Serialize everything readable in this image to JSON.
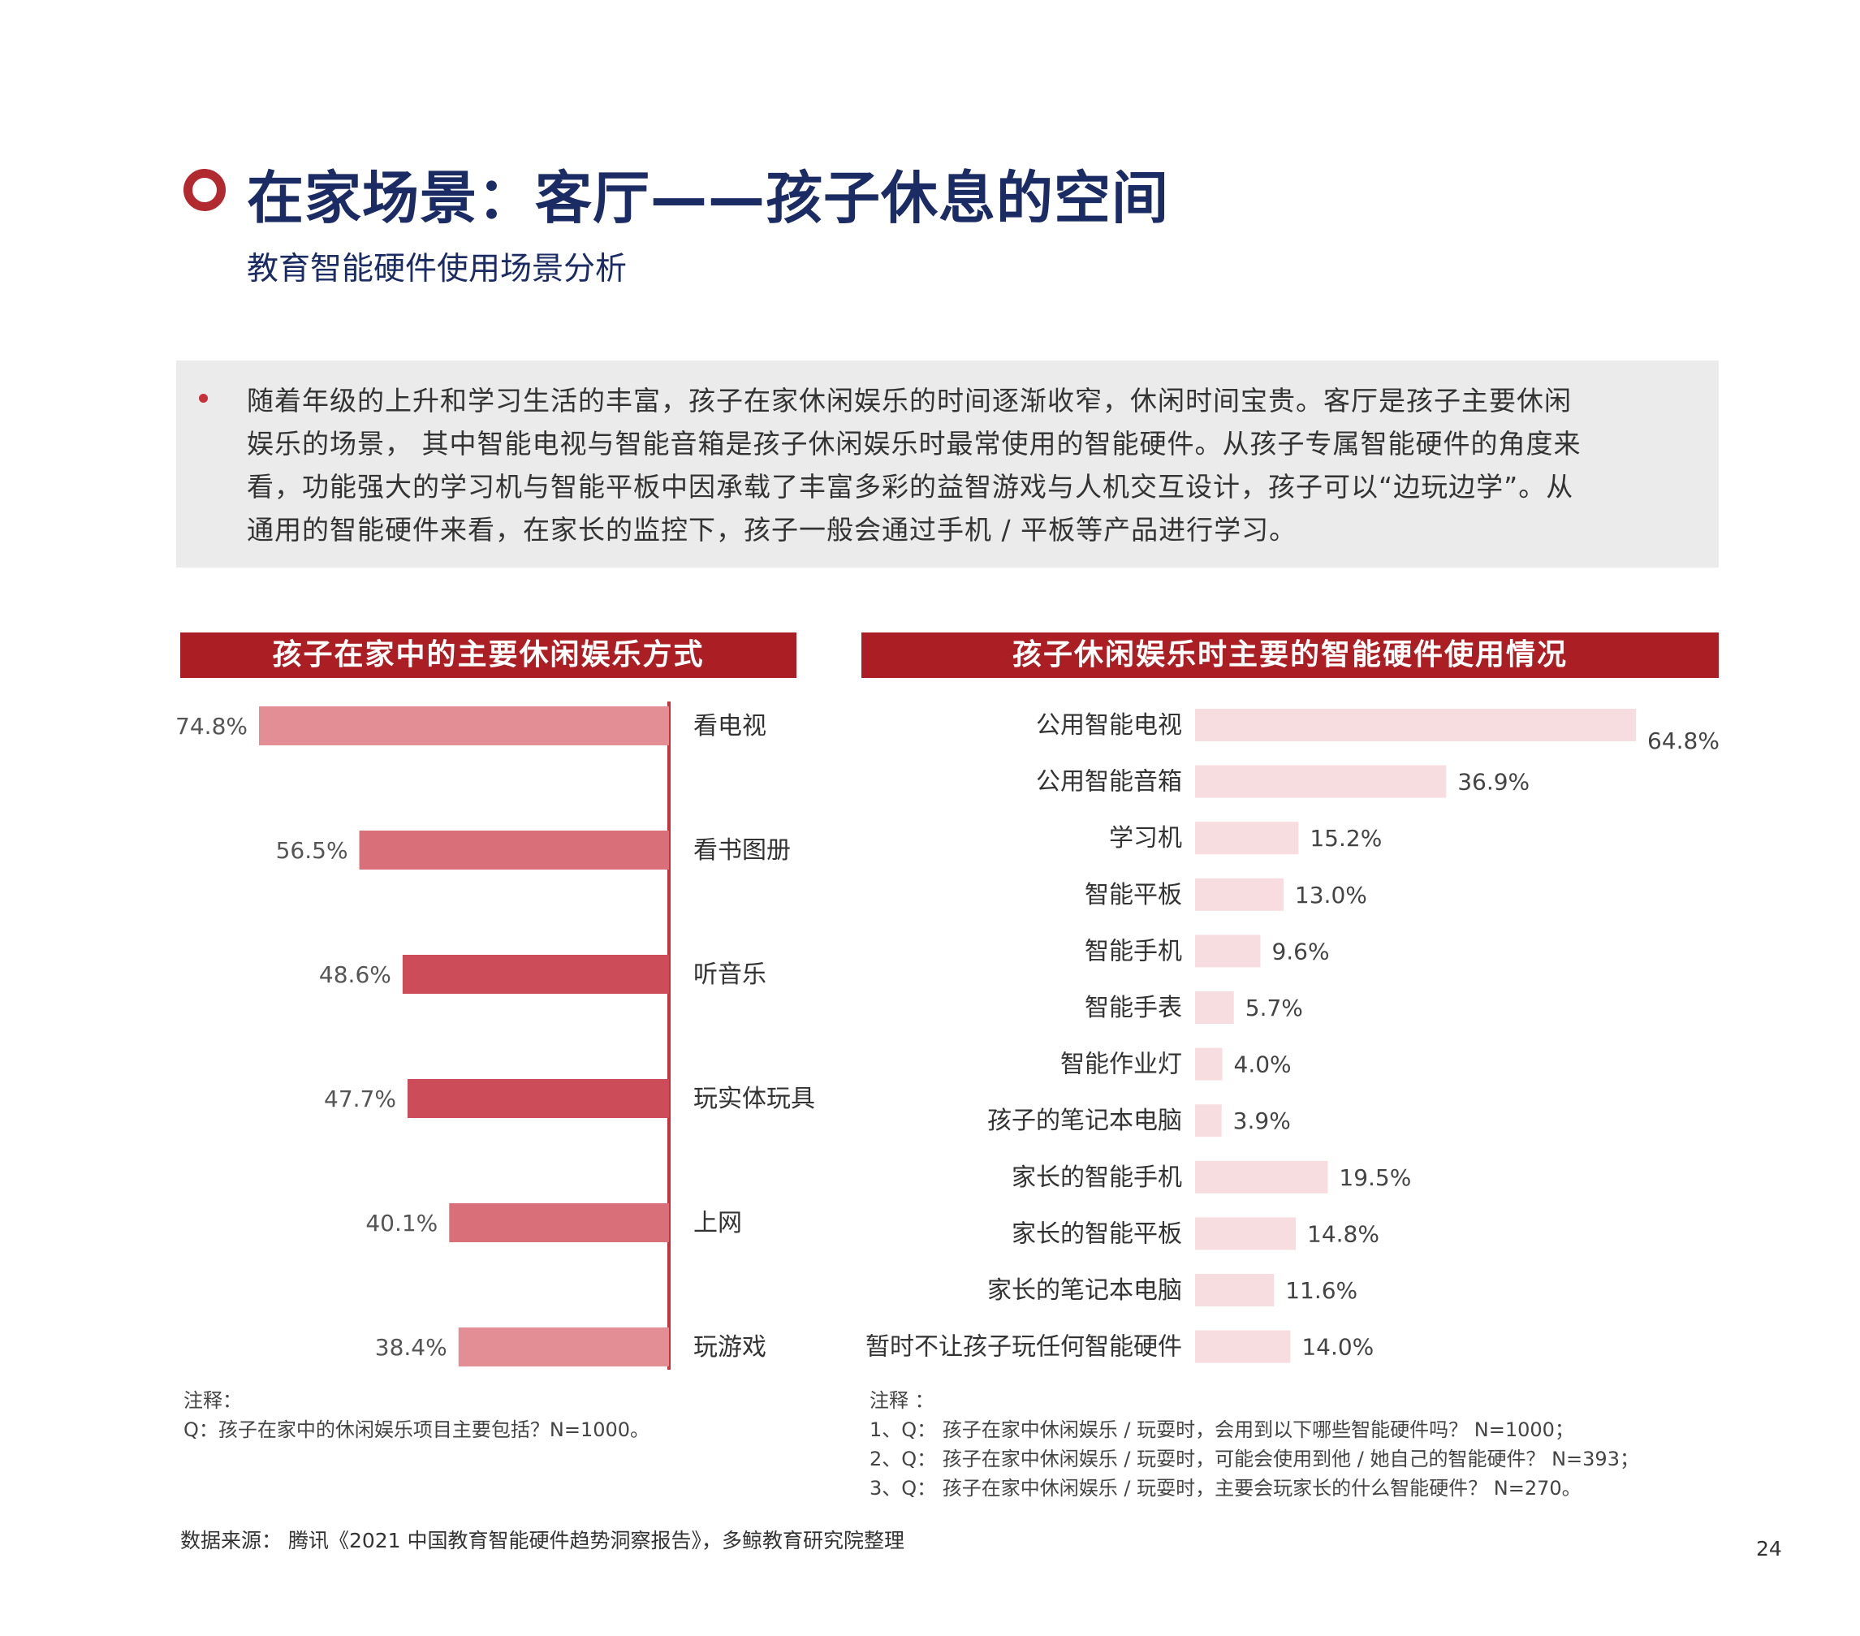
{
  "header": {
    "title": "在家场景：客厅——孩子休息的空间",
    "subtitle": "教育智能硬件使用场景分析"
  },
  "summary": {
    "lines": [
      "随着年级的上升和学习生活的丰富，孩子在家休闲娱乐的时间逐渐收窄，休闲时间宝贵。客厅是孩子主要休闲",
      "娱乐的场景， 其中智能电视与智能音箱是孩子休闲娱乐时最常使用的智能硬件。从孩子专属智能硬件的角度来",
      "看，功能强大的学习机与智能平板中因承载了丰富多彩的益智游戏与人机交互设计，孩子可以“边玩边学”。从",
      "通用的智能硬件来看，在家长的监控下，孩子一般会通过手机 / 平板等产品进行学习。"
    ]
  },
  "chart_data": [
    {
      "type": "bar",
      "orientation": "horizontal",
      "title": "孩子在家中的主要休闲娱乐方式",
      "categories": [
        "看电视",
        "看书图册",
        "听音乐",
        "玩实体玩具",
        "上网",
        "玩游戏"
      ],
      "values": [
        74.8,
        56.5,
        48.6,
        47.7,
        40.1,
        38.4
      ],
      "value_labels": [
        "74.8%",
        "56.5%",
        "48.6%",
        "47.7%",
        "40.1%",
        "38.4%"
      ],
      "unit": "%",
      "colors": [
        "#e38e95",
        "#d86f79",
        "#cd4c5a",
        "#cd4c5a",
        "#d86f79",
        "#e38e95"
      ],
      "axis_color": "#c8303a"
    },
    {
      "type": "bar",
      "orientation": "horizontal",
      "title": "孩子休闲娱乐时主要的智能硬件使用情况",
      "categories": [
        "公用智能电视",
        "公用智能音箱",
        "学习机",
        "智能平板",
        "智能手机",
        "智能手表",
        "智能作业灯",
        "孩子的笔记本电脑",
        "家长的智能手机",
        "家长的智能平板",
        "家长的笔记本电脑",
        "暂时不让孩子玩任何智能硬件"
      ],
      "values": [
        64.8,
        36.9,
        15.2,
        13.0,
        9.6,
        5.7,
        4.0,
        3.9,
        19.5,
        14.8,
        11.6,
        14.0
      ],
      "value_labels": [
        "64.8%",
        "36.9%",
        "15.2%",
        "13.0%",
        "9.6%",
        "5.7%",
        "4.0%",
        "3.9%",
        "19.5%",
        "14.8%",
        "11.6%",
        "14.0%"
      ],
      "unit": "%",
      "bar_color": "#f7dde0"
    }
  ],
  "notes": {
    "left": "注释：\nQ：孩子在家中的休闲娱乐项目主要包括？N=1000。",
    "right": "注释 ：\n1、Q： 孩子在家中休闲娱乐 / 玩耍时，会用到以下哪些智能硬件吗？ N=1000；\n2、Q： 孩子在家中休闲娱乐 / 玩耍时，可能会使用到他 / 她自己的智能硬件？ N=393；\n3、Q： 孩子在家中休闲娱乐 / 玩耍时，主要会玩家长的什么智能硬件？ N=270。"
  },
  "footer": {
    "source": "数据来源： 腾讯《2021 中国教育智能硬件趋势洞察报告》，多鲸教育研究院整理",
    "page_number": "24"
  },
  "colors": {
    "title": "#1b2b63",
    "accent": "#ab1f24",
    "summary_bg": "#ebebeb"
  }
}
